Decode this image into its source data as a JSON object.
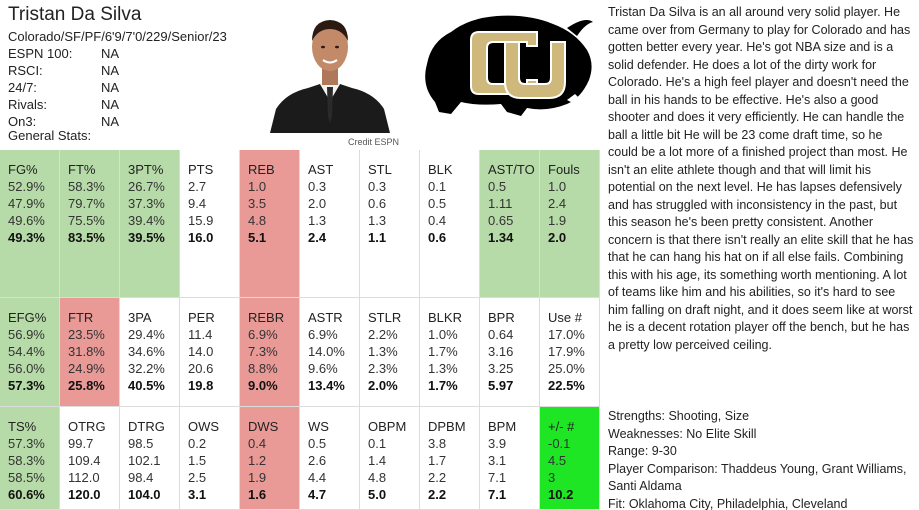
{
  "player": {
    "name": "Tristan Da Silva",
    "meta": "Colorado/SF/PF/6'9/7'0/229/Senior/23",
    "rankings": [
      {
        "label": "ESPN 100:",
        "value": "NA"
      },
      {
        "label": "RSCI:",
        "value": "NA"
      },
      {
        "label": "24/7:",
        "value": "NA"
      },
      {
        "label": "Rivals:",
        "value": "NA"
      },
      {
        "label": "On3:",
        "value": "NA"
      }
    ],
    "general_label": "General Stats:",
    "photo_credit": "Credit ESPN",
    "logo_alt": "CU"
  },
  "colors": {
    "green": "#b7dba8",
    "red": "#e99a97",
    "lime": "#1ee625",
    "logo_gold": "#cfb87c",
    "logo_black": "#000000"
  },
  "stat_rows": [
    [
      {
        "label": "FG%",
        "values": [
          "52.9%",
          "47.9%",
          "49.6%",
          "49.3%"
        ],
        "color": "green"
      },
      {
        "label": "FT%",
        "values": [
          "58.3%",
          "79.7%",
          "75.5%",
          "83.5%"
        ],
        "color": "green"
      },
      {
        "label": "3PT%",
        "values": [
          "26.7%",
          "37.3%",
          "39.4%",
          "39.5%"
        ],
        "color": "green"
      },
      {
        "label": "PTS",
        "values": [
          "2.7",
          "9.4",
          "15.9",
          "16.0"
        ],
        "color": "white"
      },
      {
        "label": "REB",
        "values": [
          "1.0",
          "3.5",
          "4.8",
          "5.1"
        ],
        "color": "red"
      },
      {
        "label": "AST",
        "values": [
          "0.3",
          "2.0",
          "1.3",
          "2.4"
        ],
        "color": "white"
      },
      {
        "label": "STL",
        "values": [
          "0.3",
          "0.6",
          "1.3",
          "1.1"
        ],
        "color": "white"
      },
      {
        "label": "BLK",
        "values": [
          "0.1",
          "0.5",
          "0.4",
          "0.6"
        ],
        "color": "white"
      },
      {
        "label": "AST/TO",
        "values": [
          "0.5",
          "1.11",
          "0.65",
          "1.34"
        ],
        "color": "green"
      },
      {
        "label": "Fouls",
        "values": [
          "1.0",
          "2.4",
          "1.9",
          "2.0"
        ],
        "color": "green"
      }
    ],
    [
      {
        "label": "EFG%",
        "values": [
          "56.9%",
          "54.4%",
          "56.0%",
          "57.3%"
        ],
        "color": "green"
      },
      {
        "label": "FTR",
        "values": [
          "23.5%",
          "31.8%",
          "24.9%",
          "25.8%"
        ],
        "color": "red"
      },
      {
        "label": "3PA",
        "values": [
          "29.4%",
          "34.6%",
          "32.2%",
          "40.5%"
        ],
        "color": "white"
      },
      {
        "label": "PER",
        "values": [
          "11.4",
          "14.0",
          "20.6",
          "19.8"
        ],
        "color": "white"
      },
      {
        "label": "REBR",
        "values": [
          "6.9%",
          "7.3%",
          "8.8%",
          "9.0%"
        ],
        "color": "red"
      },
      {
        "label": "ASTR",
        "values": [
          "6.9%",
          "14.0%",
          "9.6%",
          "13.4%"
        ],
        "color": "white"
      },
      {
        "label": "STLR",
        "values": [
          "2.2%",
          "1.3%",
          "2.3%",
          "2.0%"
        ],
        "color": "white"
      },
      {
        "label": "BLKR",
        "values": [
          "1.0%",
          "1.7%",
          "1.3%",
          "1.7%"
        ],
        "color": "white"
      },
      {
        "label": "BPR",
        "values": [
          "0.64",
          "3.16",
          "3.25",
          "5.97"
        ],
        "color": "white"
      },
      {
        "label": "Use #",
        "values": [
          "17.0%",
          "17.9%",
          "25.0%",
          "22.5%"
        ],
        "color": "white"
      }
    ],
    [
      {
        "label": "TS%",
        "values": [
          "57.3%",
          "58.3%",
          "58.5%",
          "60.6%"
        ],
        "color": "green"
      },
      {
        "label": "OTRG",
        "values": [
          "99.7",
          "109.4",
          "112.0",
          "120.0"
        ],
        "color": "white"
      },
      {
        "label": "DTRG",
        "values": [
          "98.5",
          "102.1",
          "98.4",
          "104.0"
        ],
        "color": "white"
      },
      {
        "label": "OWS",
        "values": [
          "0.2",
          "1.5",
          "2.5",
          "3.1"
        ],
        "color": "white"
      },
      {
        "label": "DWS",
        "values": [
          "0.4",
          "1.2",
          "1.9",
          "1.6"
        ],
        "color": "red"
      },
      {
        "label": "WS",
        "values": [
          "0.5",
          "2.6",
          "4.4",
          "4.7"
        ],
        "color": "white"
      },
      {
        "label": "OBPM",
        "values": [
          "0.1",
          "1.4",
          "4.8",
          "5.0"
        ],
        "color": "white"
      },
      {
        "label": "DPBM",
        "values": [
          "3.8",
          "1.7",
          "2.2",
          "2.2"
        ],
        "color": "white"
      },
      {
        "label": "BPM",
        "values": [
          "3.9",
          "3.1",
          "7.1",
          "7.1"
        ],
        "color": "white"
      },
      {
        "label": "+/- #",
        "values": [
          "-0.1",
          "4.5",
          "3",
          "10.2"
        ],
        "color": "lime"
      }
    ]
  ],
  "scouting_report": "Tristan Da Silva is an all around very solid player. He came over from Germany to play for Colorado and has gotten better every year. He's got NBA size and is a solid defender. He does a lot of the dirty work for Colorado. He's a high feel player and doesn't need the ball in his hands to be effective. He's also a good shooter and does it very efficiently. He can handle the ball a little bit  He will be 23 come draft time, so he could be a lot more of a finished project than most. He isn't an elite athlete though and that will limit his potential on the next level. He has lapses defensively and has struggled with inconsistency in the past, but this season he's been pretty consistent.  Another concern is that there isn't really an elite skill that he has that he can hang his hat on if all else fails. Combining this with his age, its something worth mentioning. A lot of teams like him and his abilities, so it's hard to see him falling on draft night, and it does seem like at worst he is a decent rotation player off the bench, but he has a pretty low perceived ceiling.",
  "summary": {
    "strengths": "Strengths: Shooting, Size",
    "weaknesses": "Weaknesses: No Elite Skill",
    "range": "Range: 9-30",
    "comparison": "Player Comparison: Thaddeus Young, Grant Williams, Santi Aldama",
    "fit": "Fit: Oklahoma City, Philadelphia, Cleveland"
  }
}
